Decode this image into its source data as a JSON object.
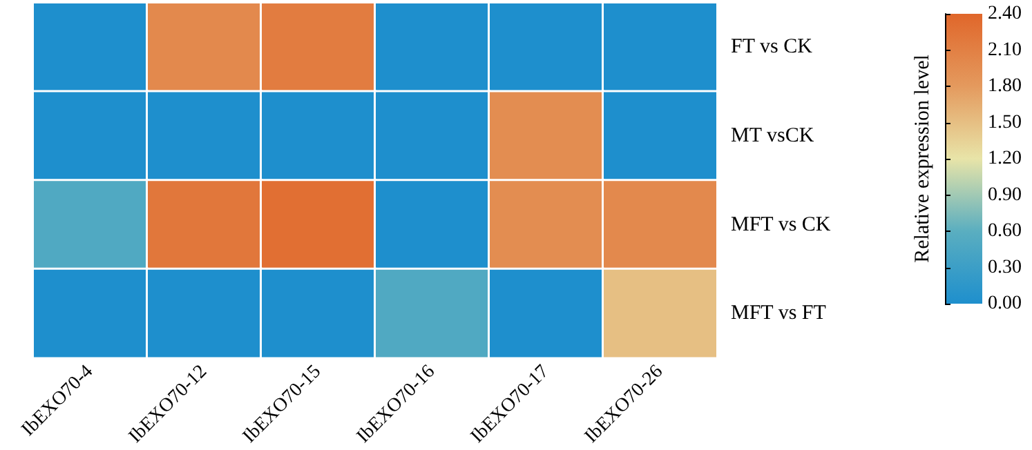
{
  "chart_data": {
    "type": "heatmap",
    "categories": [
      "IbEXO70-4",
      "IbEXO70-12",
      "IbEXO70-15",
      "IbEXO70-16",
      "IbEXO70-17",
      "IbEXO70-26"
    ],
    "y_categories": [
      "FT vs CK",
      "MT vsCK",
      "MFT vs CK",
      "MFT vs FT"
    ],
    "cells": [
      [
        0,
        2.0,
        2.15,
        0,
        0,
        0
      ],
      [
        0,
        0,
        0,
        0,
        1.95,
        0
      ],
      [
        0.5,
        2.2,
        2.3,
        0,
        1.95,
        2.0
      ],
      [
        0,
        0,
        0,
        0.5,
        0,
        1.5
      ]
    ],
    "clabel": "Relative expression level",
    "clim": [
      0,
      2.4
    ],
    "cticks": [
      {
        "value": 0,
        "label": "0.00"
      },
      {
        "value": 0.3,
        "label": "0.30"
      },
      {
        "value": 0.6,
        "label": "0.60"
      },
      {
        "value": 0.9,
        "label": "0.90"
      },
      {
        "value": 1.2,
        "label": "1.20"
      },
      {
        "value": 1.5,
        "label": "1.50"
      },
      {
        "value": 1.8,
        "label": "1.80"
      },
      {
        "value": 2.1,
        "label": "2.10"
      },
      {
        "value": 2.4,
        "label": "2.40"
      }
    ]
  }
}
